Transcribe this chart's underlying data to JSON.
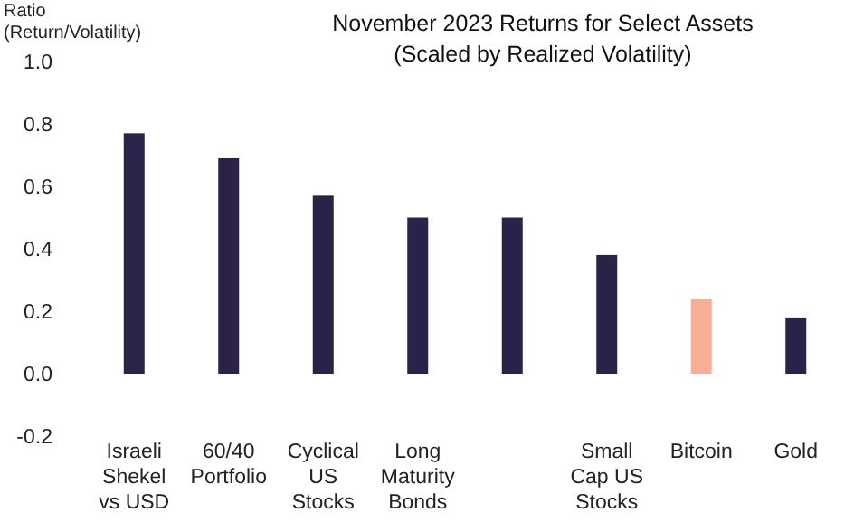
{
  "chart_data": {
    "type": "bar",
    "title": "November 2023 Returns for Select Assets\n(Scaled by Realized Volatility)",
    "ylabel": "Ratio\n(Return/Volatility)",
    "categories": [
      "Israeli\nShekel\nvs USD",
      "60/40\nPortfolio",
      "Cyclical\nUS\nStocks",
      "Long\nMaturity\nBonds",
      null,
      "Small\nCap US\nStocks",
      "Bitcoin",
      "Gold"
    ],
    "values": [
      0.77,
      0.69,
      0.57,
      0.5,
      0.5,
      0.38,
      0.24,
      0.18
    ],
    "colors": [
      "#2b2249",
      "#2b2249",
      "#2b2249",
      "#2b2249",
      "#2b2249",
      "#2b2249",
      "#f7ae95",
      "#2b2249"
    ],
    "ylim": [
      -0.2,
      1.0
    ],
    "yticks": [
      {
        "value": -0.2,
        "label": "-0.2"
      },
      {
        "value": 0,
        "label": "0.0"
      },
      {
        "value": 0.2,
        "label": "0.2"
      },
      {
        "value": 0.4,
        "label": "0.4"
      },
      {
        "value": 0.6,
        "label": "0.6"
      },
      {
        "value": 0.8,
        "label": "0.8"
      },
      {
        "value": 1.0,
        "label": "1.0"
      }
    ],
    "grid": false
  }
}
